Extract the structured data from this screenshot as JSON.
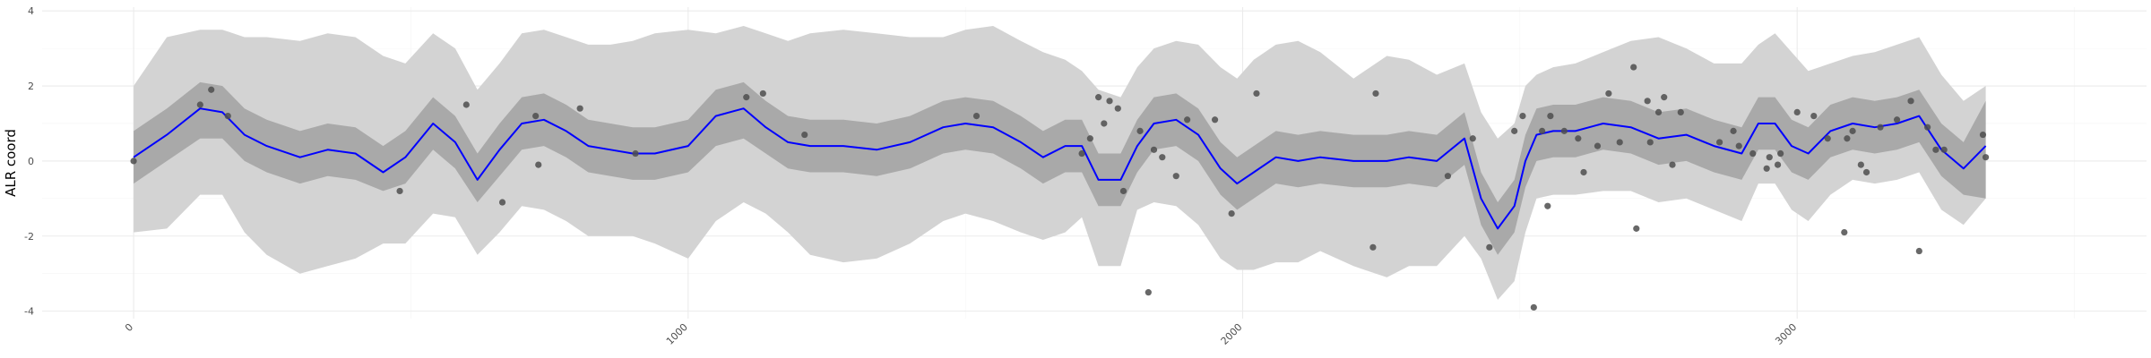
{
  "chart_data": {
    "type": "line",
    "title": "",
    "xlabel": "",
    "ylabel": "ALR coord",
    "xlim": [
      -165,
      3630
    ],
    "ylim": [
      -4.2,
      4.1
    ],
    "x_ticks": [
      0,
      1000,
      2000,
      3000
    ],
    "x_tick_labels": [
      "0",
      "1000",
      "2000",
      "3000"
    ],
    "y_ticks": [
      -4,
      -2,
      0,
      2,
      4
    ],
    "y_tick_labels": [
      "-4",
      "-2",
      "0",
      "2",
      "4"
    ],
    "grid": true,
    "legend": "none",
    "colors": {
      "mean_line": "#0000ff",
      "inner_band": "#a9a9a9",
      "outer_band": "#d3d3d3",
      "points": "#4d4d4d",
      "grid": "#ebebeb"
    },
    "mean": {
      "x": [
        0,
        60,
        120,
        160,
        200,
        240,
        300,
        350,
        400,
        450,
        490,
        540,
        580,
        620,
        660,
        700,
        740,
        780,
        820,
        860,
        900,
        940,
        1000,
        1050,
        1100,
        1140,
        1180,
        1220,
        1280,
        1340,
        1400,
        1460,
        1500,
        1550,
        1600,
        1640,
        1680,
        1710,
        1740,
        1780,
        1810,
        1840,
        1880,
        1920,
        1960,
        1990,
        2020,
        2060,
        2100,
        2140,
        2200,
        2260,
        2300,
        2350,
        2400,
        2430,
        2460,
        2490,
        2510,
        2530,
        2560,
        2600,
        2650,
        2700,
        2750,
        2800,
        2850,
        2900,
        2930,
        2960,
        2990,
        3020,
        3060,
        3100,
        3140,
        3180,
        3220,
        3260,
        3300,
        3340
      ],
      "y": [
        0.1,
        0.7,
        1.4,
        1.3,
        0.7,
        0.4,
        0.1,
        0.3,
        0.2,
        -0.3,
        0.1,
        1.0,
        0.5,
        -0.5,
        0.3,
        1.0,
        1.1,
        0.8,
        0.4,
        0.3,
        0.2,
        0.2,
        0.4,
        1.2,
        1.4,
        0.9,
        0.5,
        0.4,
        0.4,
        0.3,
        0.5,
        0.9,
        1.0,
        0.9,
        0.5,
        0.1,
        0.4,
        0.4,
        -0.5,
        -0.5,
        0.4,
        1.0,
        1.1,
        0.7,
        -0.2,
        -0.6,
        -0.3,
        0.1,
        0.0,
        0.1,
        0.0,
        0.0,
        0.1,
        0.0,
        0.6,
        -1.0,
        -1.8,
        -1.2,
        0.0,
        0.7,
        0.8,
        0.8,
        1.0,
        0.9,
        0.6,
        0.7,
        0.4,
        0.2,
        1.0,
        1.0,
        0.4,
        0.2,
        0.8,
        1.0,
        0.9,
        1.0,
        1.2,
        0.3,
        -0.2,
        0.4
      ]
    },
    "inner_band": {
      "lower": [
        -0.6,
        0.0,
        0.6,
        0.6,
        0.0,
        -0.3,
        -0.6,
        -0.4,
        -0.5,
        -0.8,
        -0.6,
        0.3,
        -0.2,
        -1.1,
        -0.4,
        0.3,
        0.4,
        0.1,
        -0.3,
        -0.4,
        -0.5,
        -0.5,
        -0.3,
        0.4,
        0.6,
        0.2,
        -0.2,
        -0.3,
        -0.3,
        -0.4,
        -0.2,
        0.2,
        0.3,
        0.2,
        -0.2,
        -0.6,
        -0.3,
        -0.3,
        -1.2,
        -1.2,
        -0.3,
        0.3,
        0.4,
        0.0,
        -0.9,
        -1.3,
        -1.0,
        -0.6,
        -0.7,
        -0.6,
        -0.7,
        -0.7,
        -0.6,
        -0.7,
        -0.1,
        -1.7,
        -2.5,
        -1.9,
        -0.7,
        0.0,
        0.1,
        0.1,
        0.3,
        0.2,
        -0.1,
        0.0,
        -0.3,
        -0.5,
        0.3,
        0.3,
        -0.3,
        -0.5,
        0.1,
        0.3,
        0.2,
        0.3,
        0.5,
        -0.4,
        -0.9,
        -1.0
      ],
      "upper": [
        0.8,
        1.4,
        2.1,
        2.0,
        1.4,
        1.1,
        0.8,
        1.0,
        0.9,
        0.4,
        0.8,
        1.7,
        1.2,
        0.2,
        1.0,
        1.7,
        1.8,
        1.5,
        1.1,
        1.0,
        0.9,
        0.9,
        1.1,
        1.9,
        2.1,
        1.6,
        1.2,
        1.1,
        1.1,
        1.0,
        1.2,
        1.6,
        1.7,
        1.6,
        1.2,
        0.8,
        1.1,
        1.1,
        0.2,
        0.2,
        1.1,
        1.7,
        1.8,
        1.4,
        0.5,
        0.1,
        0.4,
        0.8,
        0.7,
        0.8,
        0.7,
        0.7,
        0.8,
        0.7,
        1.3,
        -0.3,
        -1.1,
        -0.5,
        0.7,
        1.4,
        1.5,
        1.5,
        1.7,
        1.6,
        1.3,
        1.4,
        1.1,
        0.9,
        1.7,
        1.7,
        1.1,
        0.9,
        1.5,
        1.7,
        1.6,
        1.7,
        1.9,
        1.0,
        0.5,
        1.6
      ]
    },
    "outer_band": {
      "lower": [
        -1.9,
        -1.8,
        -0.9,
        -0.9,
        -1.9,
        -2.5,
        -3.0,
        -2.8,
        -2.6,
        -2.2,
        -2.2,
        -1.4,
        -1.5,
        -2.5,
        -1.9,
        -1.2,
        -1.3,
        -1.6,
        -2.0,
        -2.0,
        -2.0,
        -2.2,
        -2.6,
        -1.6,
        -1.1,
        -1.4,
        -1.9,
        -2.5,
        -2.7,
        -2.6,
        -2.2,
        -1.6,
        -1.4,
        -1.6,
        -1.9,
        -2.1,
        -1.9,
        -1.5,
        -2.8,
        -2.8,
        -1.3,
        -1.1,
        -1.2,
        -1.7,
        -2.6,
        -2.9,
        -2.9,
        -2.7,
        -2.7,
        -2.4,
        -2.8,
        -3.1,
        -2.8,
        -2.8,
        -2.0,
        -2.6,
        -3.7,
        -3.2,
        -1.9,
        -1.0,
        -0.9,
        -0.9,
        -0.8,
        -0.8,
        -1.1,
        -1.0,
        -1.3,
        -1.6,
        -0.6,
        -0.6,
        -1.3,
        -1.6,
        -0.9,
        -0.5,
        -0.6,
        -0.5,
        -0.3,
        -1.3,
        -1.7,
        -1.0
      ],
      "upper": [
        2.0,
        3.3,
        3.5,
        3.5,
        3.3,
        3.3,
        3.2,
        3.4,
        3.3,
        2.8,
        2.6,
        3.4,
        3.0,
        1.9,
        2.6,
        3.4,
        3.5,
        3.3,
        3.1,
        3.1,
        3.2,
        3.4,
        3.5,
        3.4,
        3.6,
        3.4,
        3.2,
        3.4,
        3.5,
        3.4,
        3.3,
        3.3,
        3.5,
        3.6,
        3.2,
        2.9,
        2.7,
        2.4,
        1.9,
        1.7,
        2.5,
        3.0,
        3.2,
        3.1,
        2.5,
        2.2,
        2.7,
        3.1,
        3.2,
        2.9,
        2.2,
        2.8,
        2.7,
        2.3,
        2.6,
        1.3,
        0.6,
        1.0,
        2.0,
        2.3,
        2.5,
        2.6,
        2.9,
        3.2,
        3.3,
        3.0,
        2.6,
        2.6,
        3.1,
        3.4,
        2.9,
        2.4,
        2.6,
        2.8,
        2.9,
        3.1,
        3.3,
        2.3,
        1.6,
        2.0
      ]
    },
    "points": {
      "x": [
        0,
        120,
        140,
        170,
        480,
        600,
        665,
        725,
        730,
        805,
        905,
        1105,
        1135,
        1210,
        1520,
        1710,
        1725,
        1740,
        1750,
        1760,
        1775,
        1785,
        1815,
        1830,
        1840,
        1855,
        1880,
        1900,
        1950,
        1980,
        2025,
        2235,
        2240,
        2370,
        2415,
        2445,
        2490,
        2505,
        2525,
        2540,
        2550,
        2555,
        2580,
        2605,
        2615,
        2640,
        2660,
        2680,
        2705,
        2710,
        2730,
        2735,
        2750,
        2760,
        2775,
        2790,
        2860,
        2885,
        2895,
        2920,
        2945,
        2950,
        2965,
        2970,
        3000,
        3030,
        3055,
        3085,
        3090,
        3100,
        3115,
        3125,
        3150,
        3180,
        3205,
        3220,
        3235,
        3250,
        3265,
        3335,
        3340
      ],
      "y": [
        0.0,
        1.5,
        1.9,
        1.2,
        -0.8,
        1.5,
        -1.1,
        1.2,
        -0.1,
        1.4,
        0.2,
        1.7,
        1.8,
        0.7,
        1.2,
        0.2,
        0.6,
        1.7,
        1.0,
        1.6,
        1.4,
        -0.8,
        0.8,
        -3.5,
        0.3,
        0.1,
        -0.4,
        1.1,
        1.1,
        -1.4,
        1.8,
        -2.3,
        1.8,
        -0.4,
        0.6,
        -2.3,
        0.8,
        1.2,
        -3.9,
        0.8,
        -1.2,
        1.2,
        0.8,
        0.6,
        -0.3,
        0.4,
        1.8,
        0.5,
        2.5,
        -1.8,
        1.6,
        0.5,
        1.3,
        1.7,
        -0.1,
        1.3,
        0.5,
        0.8,
        0.4,
        0.2,
        -0.2,
        0.1,
        -0.1,
        0.2,
        1.3,
        1.2,
        0.6,
        -1.9,
        0.6,
        0.8,
        -0.1,
        -0.3,
        0.9,
        1.1,
        1.6,
        -2.4,
        0.9,
        0.3,
        0.3,
        0.7,
        0.1
      ]
    }
  }
}
